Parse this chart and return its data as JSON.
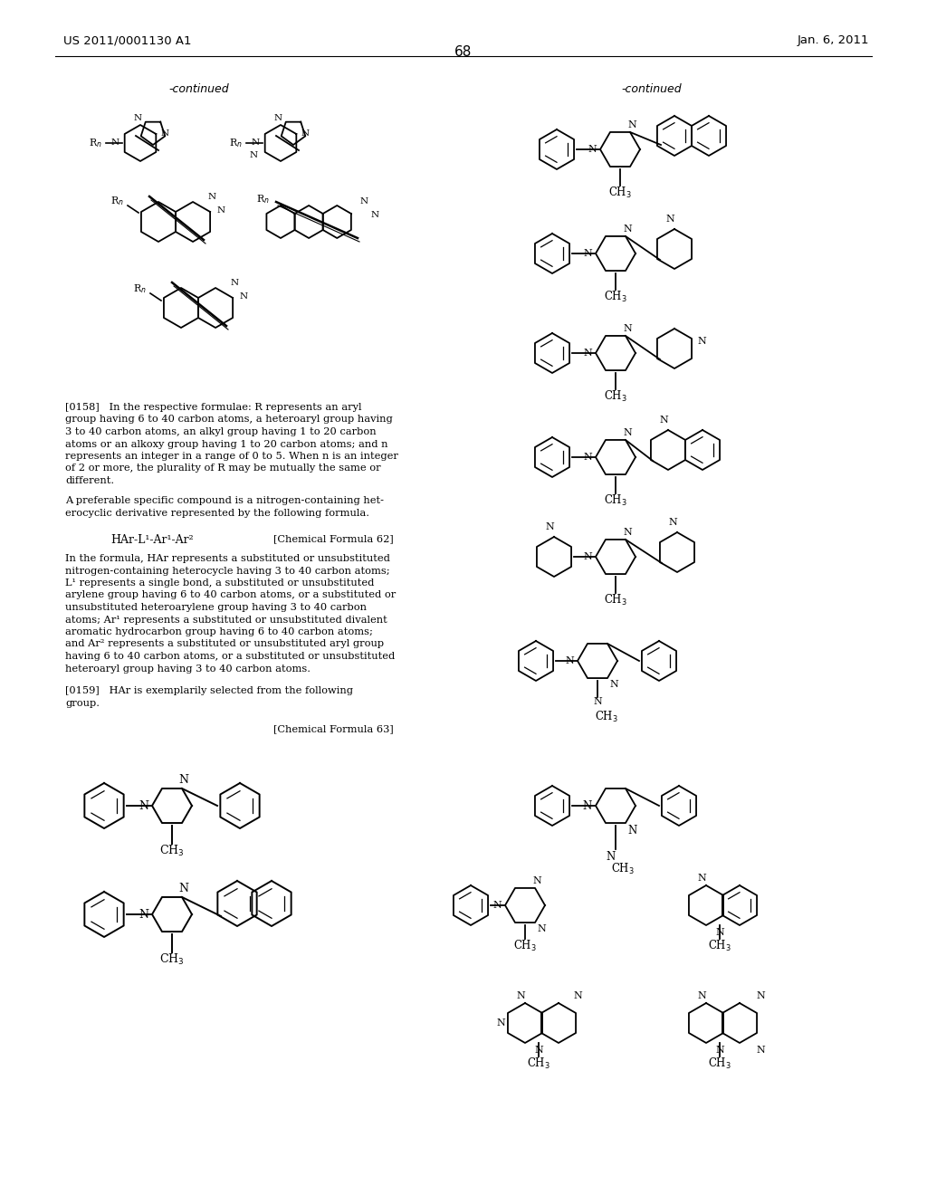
{
  "page_header_left": "US 2011/0001130 A1",
  "page_header_right": "Jan. 6, 2011",
  "page_number": "68",
  "background_color": "#ffffff",
  "text_color": "#000000",
  "continued_label": "-continued",
  "chemical_formula_62_ref": "[Chemical Formula 62]",
  "chemical_formula_63_ref": "[Chemical Formula 63]",
  "lines_0158": [
    "[0158]   In the respective formulae: R represents an aryl",
    "group having 6 to 40 carbon atoms, a heteroaryl group having",
    "3 to 40 carbon atoms, an alkyl group having 1 to 20 carbon",
    "atoms or an alkoxy group having 1 to 20 carbon atoms; and n",
    "represents an integer in a range of 0 to 5. When n is an integer",
    "of 2 or more, the plurality of R may be mutually the same or",
    "different."
  ],
  "lines_preferable": [
    "A preferable specific compound is a nitrogen-containing het-",
    "erocyclic derivative represented by the following formula."
  ],
  "formula62_text": "HAr-L¹-Ar¹-Ar²",
  "lines_body": [
    "In the formula, HAr represents a substituted or unsubstituted",
    "nitrogen-containing heterocycle having 3 to 40 carbon atoms;",
    "L¹ represents a single bond, a substituted or unsubstituted",
    "arylene group having 6 to 40 carbon atoms, or a substituted or",
    "unsubstituted heteroarylene group having 3 to 40 carbon",
    "atoms; Ar¹ represents a substituted or unsubstituted divalent",
    "aromatic hydrocarbon group having 6 to 40 carbon atoms;",
    "and Ar² represents a substituted or unsubstituted aryl group",
    "having 6 to 40 carbon atoms, or a substituted or unsubstituted",
    "heteroaryl group having 3 to 40 carbon atoms."
  ],
  "lines_0159": [
    "[0159]   HAr is exemplarily selected from the following",
    "group."
  ]
}
